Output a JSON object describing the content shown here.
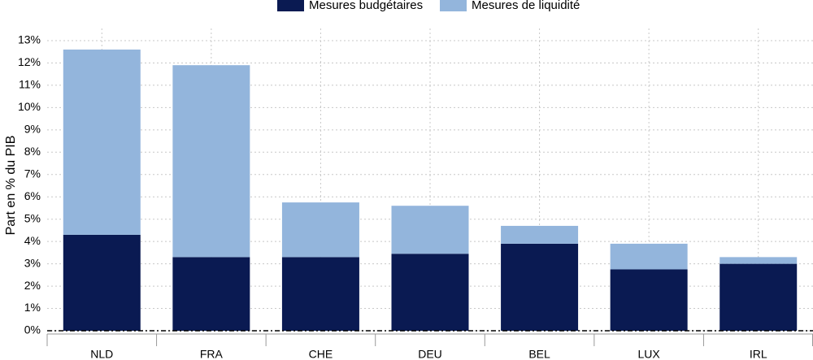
{
  "chart_data": {
    "type": "stacked_bar",
    "y_label": "Part en % du PIB",
    "categories": [
      "NLD",
      "FRA",
      "CHE",
      "DEU",
      "BEL",
      "LUX",
      "IRL"
    ],
    "category_label_colors": [
      "#000000",
      "#000000",
      "#000000",
      "#000000",
      "#000000",
      "#e3120b",
      "#000000"
    ],
    "series": [
      {
        "name": "Mesures budgétaires",
        "color": "#0a1a52",
        "values": [
          4.3,
          3.3,
          3.3,
          3.45,
          3.9,
          2.75,
          3.0
        ]
      },
      {
        "name": "Mesures de liquidité",
        "color": "#93b5dc",
        "values": [
          8.3,
          8.6,
          2.45,
          2.15,
          0.8,
          1.15,
          0.3
        ]
      }
    ],
    "ylim": [
      0,
      13
    ],
    "yticks": [
      {
        "value": 0,
        "label": "0%"
      },
      {
        "value": 1,
        "label": "1%"
      },
      {
        "value": 2,
        "label": "2%"
      },
      {
        "value": 3,
        "label": "3%"
      },
      {
        "value": 4,
        "label": "4%"
      },
      {
        "value": 5,
        "label": "5%"
      },
      {
        "value": 6,
        "label": "6%"
      },
      {
        "value": 7,
        "label": "7%"
      },
      {
        "value": 8,
        "label": "8%"
      },
      {
        "value": 9,
        "label": "9%"
      },
      {
        "value": 10,
        "label": "10%"
      },
      {
        "value": 11,
        "label": "11%"
      },
      {
        "value": 12,
        "label": "12%"
      },
      {
        "value": 13,
        "label": "13%"
      }
    ],
    "grid": true,
    "legend": "top"
  }
}
